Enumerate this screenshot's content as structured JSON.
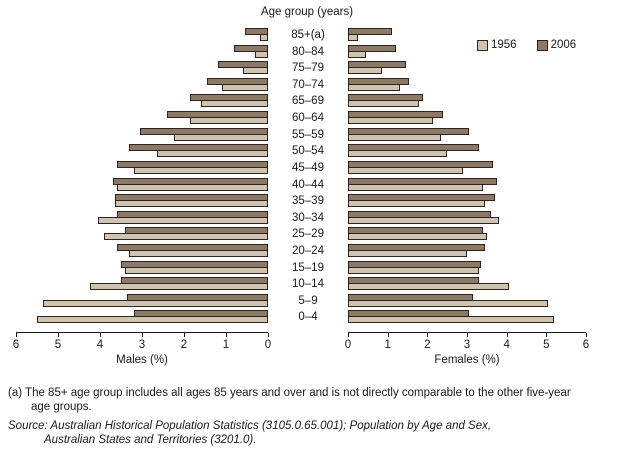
{
  "chart_data": {
    "type": "bar",
    "variant": "population_pyramid",
    "title": "Age group (years)",
    "legend": [
      {
        "label": "1956",
        "color": "#cdc4b2"
      },
      {
        "label": "2006",
        "color": "#8b7a68"
      }
    ],
    "bar_border_color": "#33221a",
    "categories_top_to_bottom": [
      "85+(a)",
      "80–84",
      "75–79",
      "70–74",
      "65–69",
      "60–64",
      "55–59",
      "50–54",
      "45–49",
      "40–44",
      "35–39",
      "30–34",
      "25–29",
      "20–24",
      "15–19",
      "10–14",
      "5–9",
      "0–4"
    ],
    "xlim": [
      0,
      6
    ],
    "male_axis": {
      "label": "Males (%)",
      "ticks": [
        6,
        5,
        4,
        3,
        2,
        1,
        0
      ]
    },
    "female_axis": {
      "label": "Females (%)",
      "ticks": [
        0,
        1,
        2,
        3,
        4,
        5,
        6
      ]
    },
    "series": [
      {
        "name": "Males 1956",
        "side": "male",
        "year": "1956",
        "values": [
          0.2,
          0.3,
          0.6,
          1.1,
          1.6,
          1.85,
          2.25,
          2.65,
          3.2,
          3.6,
          3.65,
          4.05,
          3.9,
          3.3,
          3.4,
          4.25,
          5.35,
          5.5
        ]
      },
      {
        "name": "Males 2006",
        "side": "male",
        "year": "2006",
        "values": [
          0.55,
          0.8,
          1.2,
          1.45,
          1.85,
          2.4,
          3.05,
          3.3,
          3.6,
          3.7,
          3.65,
          3.6,
          3.4,
          3.6,
          3.5,
          3.5,
          3.35,
          3.2
        ]
      },
      {
        "name": "Females 1956",
        "side": "female",
        "year": "1956",
        "values": [
          0.25,
          0.45,
          0.85,
          1.3,
          1.8,
          2.15,
          2.35,
          2.5,
          2.9,
          3.4,
          3.45,
          3.8,
          3.5,
          3.0,
          3.3,
          4.05,
          5.05,
          5.2
        ]
      },
      {
        "name": "Females 2006",
        "side": "female",
        "year": "2006",
        "values": [
          1.1,
          1.2,
          1.45,
          1.55,
          1.9,
          2.4,
          3.05,
          3.3,
          3.65,
          3.75,
          3.7,
          3.6,
          3.4,
          3.45,
          3.35,
          3.3,
          3.15,
          3.05
        ]
      }
    ]
  },
  "footnotes": {
    "line1": "(a) The 85+ age group includes all ages 85 years and over and is not directly comparable to the other five-year",
    "line2": "age groups.",
    "source_line1": "Source: Australian Historical Population Statistics (3105.0.65.001); Population by Age and Sex,",
    "source_line2": "Australian States and Territories (3201.0)."
  }
}
